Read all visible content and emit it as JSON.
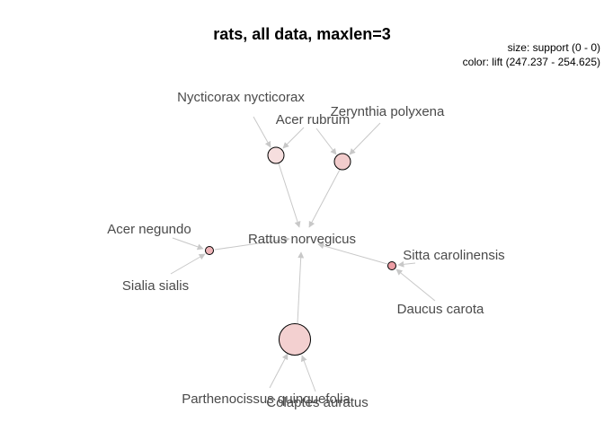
{
  "title": "rats, all data, maxlen=3",
  "legend": {
    "size": "size: support (0 - 0)",
    "color": "color: lift (247.237 - 254.625)"
  },
  "items": {
    "nycticorax": "Nycticorax nycticorax",
    "acer_rubrum": "Acer rubrum",
    "zerynthia": "Zerynthia polyxena",
    "acer_negundo": "Acer negundo",
    "rattus": "Rattus norvegicus",
    "sitta": "Sitta carolinensis",
    "sialia": "Sialia sialis",
    "daucus": "Daucus carota",
    "parthenocissus": "Parthenocissus quinquefolia",
    "colaptes": "Colaptes auratus"
  },
  "rules": [
    {
      "id": "rule-1",
      "lhs": [
        "Nycticorax nycticorax",
        "Acer rubrum"
      ],
      "rhs": "Rattus norvegicus",
      "color": "#f6dede"
    },
    {
      "id": "rule-2",
      "lhs": [
        "Acer rubrum",
        "Zerynthia polyxena"
      ],
      "rhs": "Rattus norvegicus",
      "color": "#f2cccc"
    },
    {
      "id": "rule-3",
      "lhs": [
        "Acer negundo",
        "Sialia sialis"
      ],
      "rhs": "Rattus norvegicus",
      "color": "#efb5b9"
    },
    {
      "id": "rule-4",
      "lhs": [
        "Sitta carolinensis",
        "Daucus carota"
      ],
      "rhs": "Rattus norvegicus",
      "color": "#ec9da4"
    },
    {
      "id": "rule-5",
      "lhs": [
        "Parthenocissus quinquefolia",
        "Colaptes auratus"
      ],
      "rhs": "Rattus norvegicus",
      "color": "#f3d0d0"
    }
  ]
}
